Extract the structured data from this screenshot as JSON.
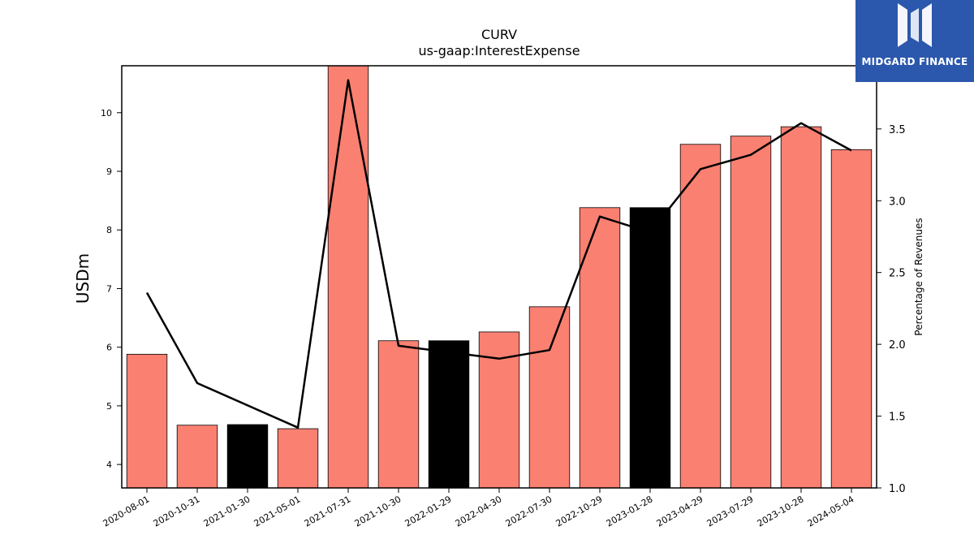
{
  "chart_data": {
    "type": "bar",
    "title": "CURV",
    "subtitle": "us-gaap:InterestExpense",
    "ylabel": "USDm",
    "y2label": "Percentage of Revenues",
    "categories": [
      "2020-08-01",
      "2020-10-31",
      "2021-01-30",
      "2021-05-01",
      "2021-07-31",
      "2021-10-30",
      "2022-01-29",
      "2022-04-30",
      "2022-07-30",
      "2022-10-29",
      "2023-01-28",
      "2023-04-29",
      "2023-07-29",
      "2023-10-28",
      "2024-05-04"
    ],
    "series": [
      {
        "type": "bar",
        "values": [
          5.88,
          4.67,
          4.68,
          4.61,
          10.8,
          6.11,
          6.11,
          6.26,
          6.69,
          8.38,
          8.38,
          9.46,
          9.6,
          9.76,
          9.37
        ],
        "colors": [
          "#fa8072",
          "#fa8072",
          "#000000",
          "#fa8072",
          "#fa8072",
          "#fa8072",
          "#000000",
          "#fa8072",
          "#fa8072",
          "#fa8072",
          "#000000",
          "#fa8072",
          "#fa8072",
          "#fa8072",
          "#fa8072"
        ]
      },
      {
        "type": "line",
        "axis": "right",
        "values": [
          2.36,
          1.73,
          null,
          1.42,
          3.84,
          1.99,
          null,
          1.9,
          1.96,
          2.89,
          2.78,
          3.22,
          3.32,
          3.54,
          3.35
        ]
      }
    ],
    "ylim": [
      3.6,
      10.8
    ],
    "y2lim": [
      1.0,
      3.94
    ],
    "yticks": [
      4,
      5,
      6,
      7,
      8,
      9,
      10
    ],
    "y2ticks": [
      "1.0",
      "1.5",
      "2.0",
      "2.5",
      "3.0",
      "3.5"
    ],
    "grid": false,
    "legend": "none"
  },
  "logo": {
    "text": "MIDGARD FINANCE",
    "icon": "midgard-logo-icon",
    "color": "#2b57ad"
  }
}
